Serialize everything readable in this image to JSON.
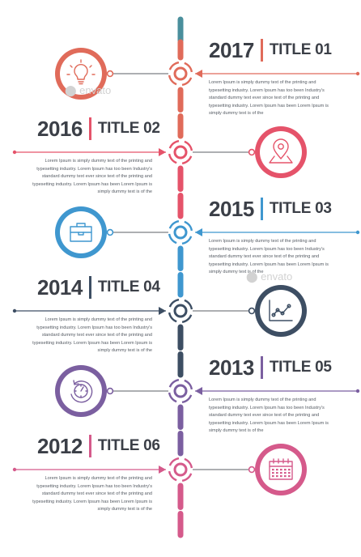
{
  "description": "Lorem Ipsum is simply dummy text of the printing and typesetting industry. Lorem Ipsum has too been Industry's standard dummy text ever since text of the printing and typesetting industry. Lorem Ipsum has been Lorem Ipsum is simply dummy text is of the",
  "watermark": "envato",
  "entries": [
    {
      "year": "2017",
      "title": "TITLE 01",
      "icon": "lightbulb-icon",
      "color": "#e06b5a"
    },
    {
      "year": "2016",
      "title": "TITLE 02",
      "icon": "map-pin-icon",
      "color": "#e5536a"
    },
    {
      "year": "2015",
      "title": "TITLE 03",
      "icon": "briefcase-icon",
      "color": "#3f97cf"
    },
    {
      "year": "2014",
      "title": "TITLE 04",
      "icon": "line-chart-icon",
      "color": "#3d4e63"
    },
    {
      "year": "2013",
      "title": "TITLE 05",
      "icon": "stopwatch-icon",
      "color": "#7b5fa0"
    },
    {
      "year": "2012",
      "title": "TITLE 06",
      "icon": "calendar-icon",
      "color": "#d55a8b"
    }
  ],
  "line_colors": {
    "top": "#4a8f9c",
    "bottom": "#c95f82"
  }
}
